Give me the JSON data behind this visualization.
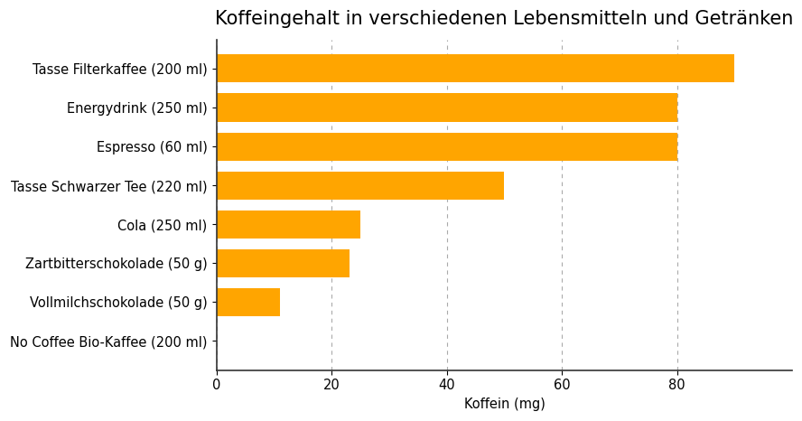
{
  "title": "Koffeingehalt in verschiedenen Lebensmitteln und Getränken",
  "xlabel": "Koffein (mg)",
  "categories": [
    "Tasse Filterkaffee (200 ml)",
    "Energydrink (250 ml)",
    "Espresso (60 ml)",
    "Tasse Schwarzer Tee (220 ml)",
    "Cola (250 ml)",
    "Zartbitterschokolade (50 g)",
    "Vollmilchschokolade (50 g)",
    "No Coffee Bio-Kaffee (200 ml)"
  ],
  "values": [
    90,
    80,
    80,
    50,
    25,
    23,
    11,
    0
  ],
  "bar_color": "#FFA500",
  "background_color": "#ffffff",
  "plot_bg_color": "#ffffff",
  "xlim": [
    0,
    100
  ],
  "xticks": [
    0,
    20,
    40,
    60,
    80
  ],
  "bar_height": 0.72,
  "title_fontsize": 15,
  "label_fontsize": 10.5,
  "tick_fontsize": 10.5,
  "grid_color": "#aaaaaa",
  "grid_linestyle": "--",
  "spine_color": "#333333"
}
